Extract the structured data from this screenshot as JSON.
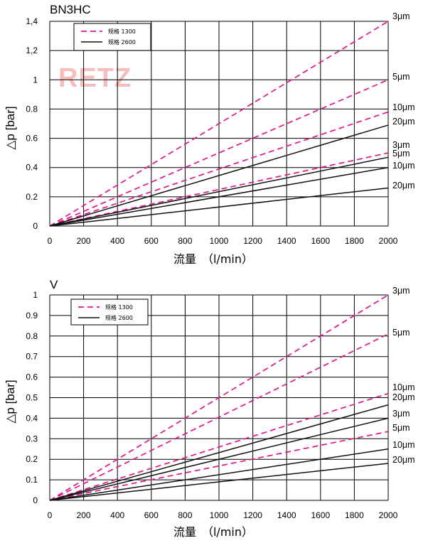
{
  "watermark": "RETZ",
  "chart_data": [
    {
      "type": "line",
      "title": "BN3HC",
      "xlabel": "流量　（l/min）",
      "ylabel": "△p [bar]",
      "xlim": [
        0,
        2000
      ],
      "ylim": [
        0,
        1.4
      ],
      "x_ticks": [
        "0",
        "200",
        "400",
        "600",
        "800",
        "1000",
        "1200",
        "1400",
        "1600",
        "1800",
        "2000"
      ],
      "y_ticks": [
        "0",
        "0.2",
        "0.4",
        "0.6",
        "0.8",
        "1",
        "1,2",
        "1,4"
      ],
      "legend": [
        {
          "label": "规格 1300",
          "style": "dashed",
          "color": "#e0188a"
        },
        {
          "label": "规格 2600",
          "style": "solid",
          "color": "#111111"
        }
      ],
      "series": [
        {
          "name": "3μm",
          "group": "规格 1300",
          "x": [
            0,
            2000
          ],
          "y": [
            0,
            1.4
          ]
        },
        {
          "name": "5μm",
          "group": "规格 1300",
          "x": [
            0,
            2000
          ],
          "y": [
            0,
            1.0
          ]
        },
        {
          "name": "10μm",
          "group": "规格 1300",
          "x": [
            0,
            2000
          ],
          "y": [
            0,
            0.78
          ]
        },
        {
          "name": "20μm",
          "group": "规格 1300",
          "x": [
            0,
            2000
          ],
          "y": [
            0,
            0.5
          ]
        },
        {
          "name": "3μm",
          "group": "规格 2600",
          "x": [
            0,
            2000
          ],
          "y": [
            0,
            0.69
          ]
        },
        {
          "name": "5μm",
          "group": "规格 2600",
          "x": [
            0,
            2000
          ],
          "y": [
            0,
            0.47
          ]
        },
        {
          "name": "10μm",
          "group": "规格 2600",
          "x": [
            0,
            2000
          ],
          "y": [
            0,
            0.4
          ]
        },
        {
          "name": "20μm",
          "group": "规格 2600",
          "x": [
            0,
            2000
          ],
          "y": [
            0,
            0.26
          ]
        }
      ]
    },
    {
      "type": "line",
      "title": "V",
      "xlabel": "流量　（l/min）",
      "ylabel": "△p [bar]",
      "xlim": [
        0,
        2000
      ],
      "ylim": [
        0,
        1.0
      ],
      "x_ticks": [
        "0",
        "200",
        "400",
        "600",
        "800",
        "1000",
        "1200",
        "1400",
        "1600",
        "1800",
        "2000"
      ],
      "y_ticks": [
        "0",
        "0.1",
        "0.2",
        "0.3",
        "0.4",
        "0.5",
        "0.6",
        "0.7",
        "0.8",
        "0.9",
        "1"
      ],
      "legend": [
        {
          "label": "规格 1300",
          "style": "dashed",
          "color": "#e0188a"
        },
        {
          "label": "规格 2600",
          "style": "solid",
          "color": "#111111"
        }
      ],
      "series": [
        {
          "name": "3μm",
          "group": "规格 1300",
          "x": [
            0,
            2000
          ],
          "y": [
            0,
            1.0
          ]
        },
        {
          "name": "5μm",
          "group": "规格 1300",
          "x": [
            0,
            2000
          ],
          "y": [
            0,
            0.81
          ]
        },
        {
          "name": "10μm",
          "group": "规格 1300",
          "x": [
            0,
            2000
          ],
          "y": [
            0,
            0.52
          ]
        },
        {
          "name": "20μm",
          "group": "规格 1300",
          "x": [
            0,
            2000
          ],
          "y": [
            0,
            0.335
          ]
        },
        {
          "name": "3μm",
          "group": "规格 2600",
          "x": [
            0,
            2000
          ],
          "y": [
            0,
            0.465
          ]
        },
        {
          "name": "5μm",
          "group": "规格 2600",
          "x": [
            0,
            2000
          ],
          "y": [
            0,
            0.4
          ]
        },
        {
          "name": "10μm",
          "group": "规格 2600",
          "x": [
            0,
            2000
          ],
          "y": [
            0,
            0.25
          ]
        },
        {
          "name": "20μm",
          "group": "规格 2600",
          "x": [
            0,
            2000
          ],
          "y": [
            0,
            0.18
          ]
        }
      ]
    }
  ]
}
